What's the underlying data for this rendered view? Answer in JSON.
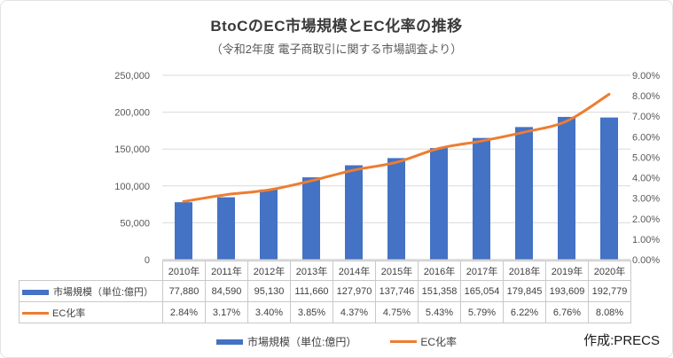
{
  "title": "BtoCのEC市場規模とEC化率の推移",
  "subtitle": "（令和2年度 電子商取引に関する市場調査より）",
  "credit": "作成:PRECS",
  "colors": {
    "bar": "#4472C4",
    "line": "#ED7D31",
    "grid": "#D9D9D9",
    "axis_line": "#BFBFBF",
    "axis_text": "#595959",
    "table_border": "#C9C9C9",
    "table_text": "#404040"
  },
  "chart_data": {
    "type": "bar",
    "subtype": "combo-bar-line",
    "title": "BtoCのEC市場規模とEC化率の推移",
    "subtitle": "（令和2年度 電子商取引に関する市場調査より）",
    "categories": [
      "2010年",
      "2011年",
      "2012年",
      "2013年",
      "2014年",
      "2015年",
      "2016年",
      "2017年",
      "2018年",
      "2019年",
      "2020年"
    ],
    "series": [
      {
        "name": "市場規模（単位:億円）",
        "type": "bar",
        "axis": "left",
        "color": "#4472C4",
        "values": [
          77880,
          84590,
          95130,
          111660,
          127970,
          137746,
          151358,
          165054,
          179845,
          193609,
          192779
        ]
      },
      {
        "name": "EC化率",
        "type": "line",
        "axis": "right",
        "color": "#ED7D31",
        "values": [
          2.84,
          3.17,
          3.4,
          3.85,
          4.37,
          4.75,
          5.43,
          5.79,
          6.22,
          6.76,
          8.08
        ]
      }
    ],
    "left_axis": {
      "min": 0,
      "max": 250000,
      "step": 50000,
      "tick_labels": [
        "0",
        "50,000",
        "100,000",
        "150,000",
        "200,000",
        "250,000"
      ]
    },
    "right_axis": {
      "min": 0,
      "max": 9,
      "step": 1,
      "tick_labels": [
        "0.00%",
        "1.00%",
        "2.00%",
        "3.00%",
        "4.00%",
        "5.00%",
        "6.00%",
        "7.00%",
        "8.00%",
        "9.00%"
      ]
    },
    "grid": true,
    "legend_position": "bottom",
    "data_table": {
      "rows": [
        {
          "label": "市場規模（単位:億円）",
          "swatch": "bar",
          "values": [
            "77,880",
            "84,590",
            "95,130",
            "111,660",
            "127,970",
            "137,746",
            "151,358",
            "165,054",
            "179,845",
            "193,609",
            "192,779"
          ]
        },
        {
          "label": "EC化率",
          "swatch": "line",
          "values": [
            "2.84%",
            "3.17%",
            "3.40%",
            "3.85%",
            "4.37%",
            "4.75%",
            "5.43%",
            "5.79%",
            "6.22%",
            "6.76%",
            "8.08%"
          ]
        }
      ]
    }
  },
  "legend": {
    "items": [
      {
        "label": "市場規模（単位:億円）",
        "swatch": "bar"
      },
      {
        "label": "EC化率",
        "swatch": "line"
      }
    ]
  }
}
